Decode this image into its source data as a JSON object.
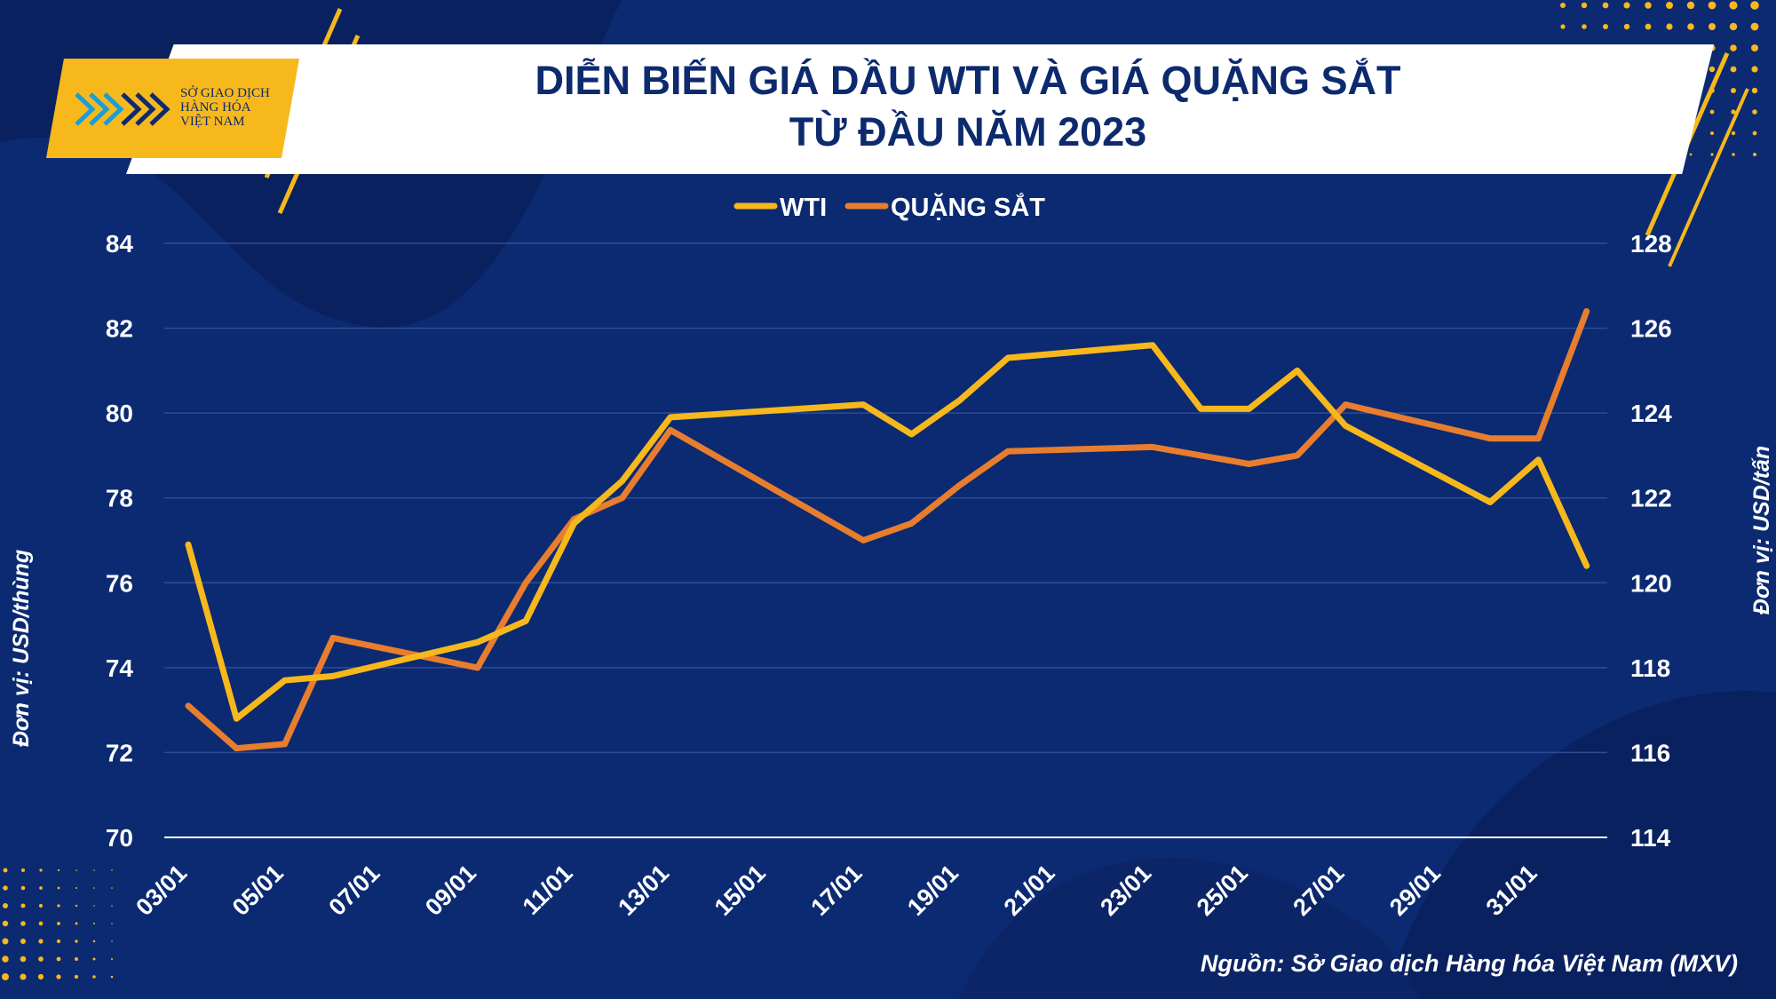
{
  "header": {
    "title_line1": "DIỄN BIẾN GIÁ DẦU WTI VÀ GIÁ QUẶNG SẮT",
    "title_line2": "TỪ ĐẦU NĂM 2023"
  },
  "logo": {
    "line1": "SỞ GIAO DỊCH",
    "line2": "HÀNG HÓA",
    "line3": "VIỆT NAM"
  },
  "source": "Nguồn: Sở Giao dịch Hàng hóa Việt Nam (MXV)",
  "colors": {
    "background": "#0b2a72",
    "wti": "#f7b81c",
    "iron_ore": "#e87d2e",
    "grid": "#2f4c92",
    "text": "#ffffff"
  },
  "chart_data": {
    "type": "line",
    "title": "DIỄN BIẾN GIÁ DẦU WTI VÀ GIÁ QUẶNG SẮT TỪ ĐẦU NĂM 2023",
    "legend_position": "top-center",
    "x_ticks": [
      "03/01",
      "05/01",
      "07/01",
      "09/01",
      "11/01",
      "13/01",
      "15/01",
      "17/01",
      "19/01",
      "21/01",
      "23/01",
      "25/01",
      "27/01",
      "29/01",
      "31/01"
    ],
    "y_left": {
      "label": "Đơn vị: USD/thùng",
      "range": [
        70,
        84
      ],
      "ticks": [
        "70",
        "72",
        "74",
        "76",
        "78",
        "80",
        "82",
        "84"
      ]
    },
    "y_right": {
      "label": "Đơn vị: USD/tấn",
      "range": [
        114,
        128
      ],
      "ticks": [
        "114",
        "116",
        "118",
        "120",
        "122",
        "124",
        "126",
        "128"
      ]
    },
    "series": [
      {
        "name": "WTI",
        "axis": "left",
        "points": [
          [
            0,
            76.9
          ],
          [
            1,
            72.8
          ],
          [
            2,
            73.7
          ],
          [
            3,
            73.8
          ],
          [
            6,
            74.6
          ],
          [
            7,
            75.1
          ],
          [
            8,
            77.4
          ],
          [
            9,
            78.4
          ],
          [
            10,
            79.9
          ],
          [
            14,
            80.2
          ],
          [
            15,
            79.5
          ],
          [
            16,
            80.3
          ],
          [
            17,
            81.3
          ],
          [
            20,
            81.6
          ],
          [
            21,
            80.1
          ],
          [
            22,
            80.1
          ],
          [
            23,
            81.0
          ],
          [
            24,
            79.7
          ],
          [
            27,
            77.9
          ],
          [
            28,
            78.9
          ],
          [
            29,
            76.4
          ]
        ]
      },
      {
        "name": "QUẶNG SẮT",
        "axis": "right",
        "points": [
          [
            0,
            117.1
          ],
          [
            1,
            116.1
          ],
          [
            2,
            116.2
          ],
          [
            3,
            118.7
          ],
          [
            6,
            118.0
          ],
          [
            7,
            120.0
          ],
          [
            8,
            121.5
          ],
          [
            9,
            122.0
          ],
          [
            10,
            123.6
          ],
          [
            14,
            121.0
          ],
          [
            15,
            121.4
          ],
          [
            16,
            122.3
          ],
          [
            17,
            123.1
          ],
          [
            20,
            123.2
          ],
          [
            21,
            123.0
          ],
          [
            22,
            122.8
          ],
          [
            23,
            123.0
          ],
          [
            24,
            124.2
          ],
          [
            27,
            123.4
          ],
          [
            28,
            123.4
          ],
          [
            29,
            126.4
          ]
        ]
      }
    ]
  }
}
